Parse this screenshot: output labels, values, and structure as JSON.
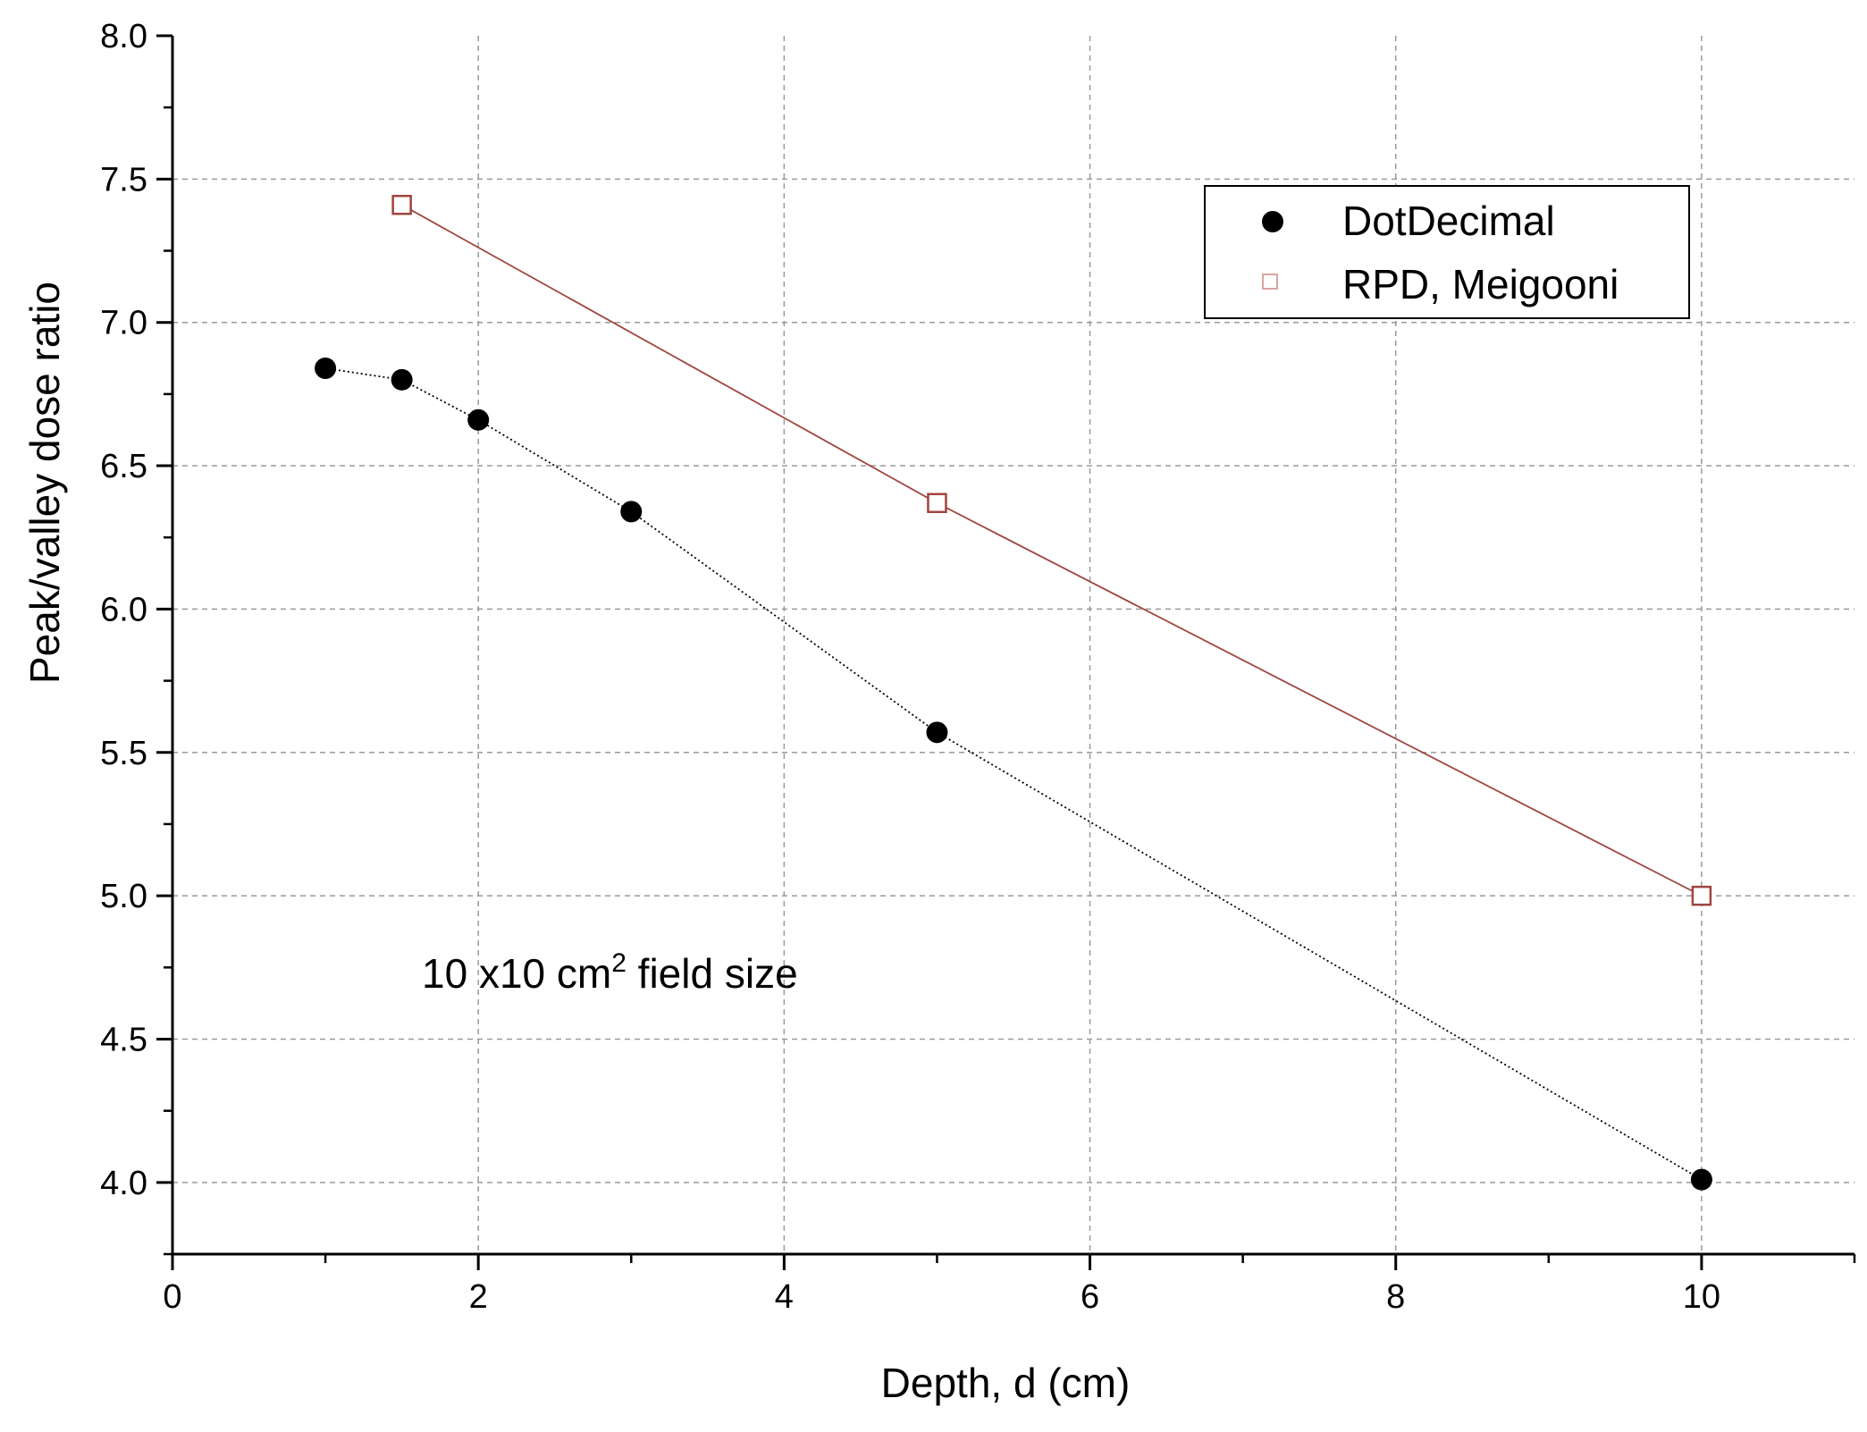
{
  "chart_data": {
    "type": "scatter",
    "title": "",
    "xlabel": "Depth, d (cm)",
    "ylabel": "Peak/valley dose ratio",
    "xlim": [
      0,
      11
    ],
    "ylim": [
      3.75,
      8.0
    ],
    "x_ticks": [
      0,
      2,
      4,
      6,
      8,
      10
    ],
    "x_tick_labels": [
      "0",
      "2",
      "4",
      "6",
      "8",
      "10"
    ],
    "x_minor_step": 1,
    "y_ticks": [
      4.0,
      4.5,
      5.0,
      5.5,
      6.0,
      6.5,
      7.0,
      7.5,
      8.0
    ],
    "y_tick_labels": [
      "4.0",
      "4.5",
      "5.0",
      "5.5",
      "6.0",
      "6.5",
      "7.0",
      "7.5",
      "8.0"
    ],
    "y_minor_step": 0.25,
    "grid": true,
    "legend_position": "top-right",
    "series": [
      {
        "name": "DotDecimal",
        "marker": "filled-circle",
        "color": "#000000",
        "line_style": "dotted",
        "x": [
          1,
          1.5,
          2,
          3,
          5,
          10
        ],
        "y": [
          6.84,
          6.8,
          6.66,
          6.34,
          5.57,
          4.01
        ]
      },
      {
        "name": "RPD, Meigooni",
        "marker": "open-square",
        "color": "#a0453f",
        "line_style": "solid",
        "x": [
          1.5,
          5,
          10
        ],
        "y": [
          7.41,
          6.37,
          5.0
        ]
      }
    ],
    "annotation": {
      "text_prefix": "10 x10 cm",
      "superscript": "2",
      "text_suffix": " field size"
    }
  }
}
